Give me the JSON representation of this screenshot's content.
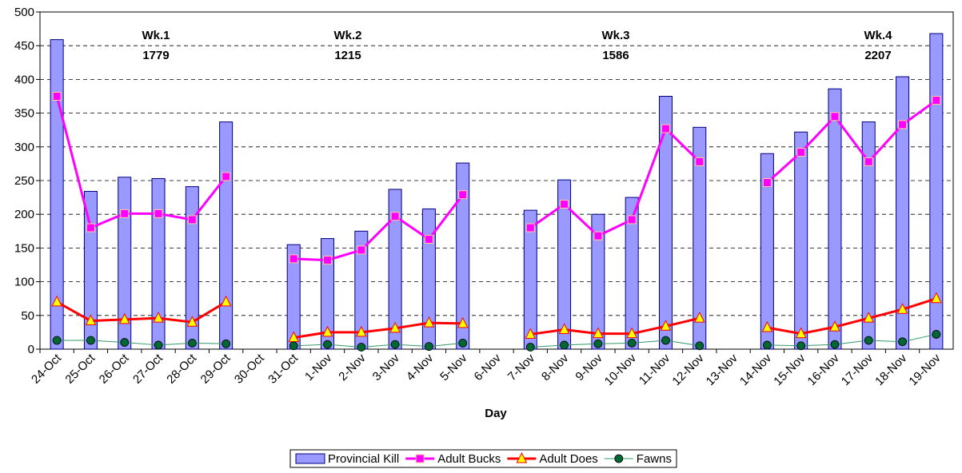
{
  "chart_data": {
    "type": "bar-line",
    "x_label": "Day",
    "categories": [
      "24-Oct",
      "25-Oct",
      "26-Oct",
      "27-Oct",
      "28-Oct",
      "29-Oct",
      "30-Oct",
      "31-Oct",
      "1-Nov",
      "2-Nov",
      "3-Nov",
      "4-Nov",
      "5-Nov",
      "6-Nov",
      "7-Nov",
      "8-Nov",
      "9-Nov",
      "10-Nov",
      "11-Nov",
      "12-Nov",
      "13-Nov",
      "14-Nov",
      "15-Nov",
      "16-Nov",
      "17-Nov",
      "18-Nov",
      "19-Nov"
    ],
    "series": [
      {
        "name": "Provincial Kill",
        "kind": "bar",
        "color": "#9999ff",
        "values": [
          459,
          234,
          255,
          253,
          241,
          337,
          null,
          155,
          164,
          175,
          237,
          208,
          276,
          null,
          206,
          251,
          200,
          225,
          375,
          329,
          null,
          290,
          322,
          386,
          337,
          404,
          468
        ]
      },
      {
        "name": "Adult Bucks",
        "kind": "line",
        "marker": "square",
        "color": "#ff00ff",
        "values": [
          375,
          180,
          201,
          201,
          192,
          256,
          null,
          134,
          132,
          147,
          197,
          163,
          229,
          null,
          180,
          215,
          168,
          192,
          327,
          278,
          null,
          247,
          292,
          345,
          278,
          333,
          369
        ]
      },
      {
        "name": "Adult Does",
        "kind": "line",
        "marker": "triangle",
        "color": "#ff0000",
        "values": [
          70,
          42,
          44,
          46,
          40,
          70,
          null,
          17,
          25,
          25,
          31,
          39,
          38,
          null,
          22,
          29,
          23,
          23,
          34,
          46,
          null,
          32,
          23,
          33,
          46,
          59,
          75
        ]
      },
      {
        "name": "Fawns",
        "kind": "line",
        "marker": "circle",
        "color": "#339966",
        "values": [
          13,
          13,
          10,
          6,
          9,
          8,
          null,
          5,
          7,
          3,
          7,
          4,
          9,
          null,
          3,
          6,
          8,
          9,
          13,
          5,
          null,
          6,
          5,
          7,
          13,
          11,
          22
        ]
      }
    ],
    "annotations": [
      {
        "label": "Wk.1",
        "total": 1779
      },
      {
        "label": "Wk.2",
        "total": 1215
      },
      {
        "label": "Wk.3",
        "total": 1586
      },
      {
        "label": "Wk.4",
        "total": 2207
      }
    ],
    "ylim": [
      0,
      500
    ],
    "yticks": [
      0,
      50,
      100,
      150,
      200,
      250,
      300,
      350,
      400,
      450,
      500
    ],
    "grid": true
  }
}
